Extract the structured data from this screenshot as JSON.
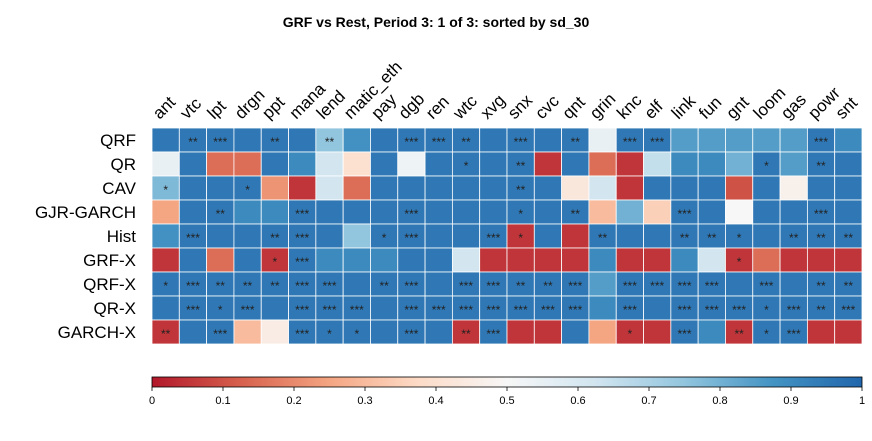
{
  "chart_data": {
    "type": "heatmap",
    "title": "GRF vs Rest,  Period 3: 1 of 3: sorted by sd_30",
    "columns": [
      "ant",
      "vtc",
      "lpt",
      "drgn",
      "ppt",
      "mana",
      "lend",
      "matic_eth",
      "pay",
      "dgb",
      "ren",
      "wtc",
      "xvg",
      "snx",
      "cvc",
      "qnt",
      "grin",
      "knc",
      "elf",
      "link",
      "fun",
      "gnt",
      "loom",
      "gas",
      "powr",
      "snt"
    ],
    "rows": [
      "QRF",
      "QR",
      "CAV",
      "GJR-GARCH",
      "Hist",
      "GRF-X",
      "QRF-X",
      "QR-X",
      "GARCH-X"
    ],
    "values": [
      [
        0.95,
        0.95,
        0.95,
        0.95,
        0.95,
        0.95,
        0.75,
        0.88,
        0.95,
        0.95,
        0.95,
        0.95,
        0.95,
        0.95,
        0.95,
        0.95,
        0.55,
        0.95,
        0.95,
        0.85,
        0.85,
        0.85,
        0.85,
        0.85,
        0.95,
        0.9
      ],
      [
        0.55,
        0.95,
        0.15,
        0.15,
        0.95,
        0.9,
        0.62,
        0.4,
        0.95,
        0.53,
        0.95,
        0.95,
        0.95,
        0.95,
        0.05,
        0.95,
        0.15,
        0.05,
        0.65,
        0.9,
        0.9,
        0.8,
        0.95,
        0.85,
        0.95,
        0.95
      ],
      [
        0.78,
        0.95,
        0.95,
        0.95,
        0.22,
        0.05,
        0.62,
        0.15,
        0.95,
        0.95,
        0.95,
        0.95,
        0.95,
        0.95,
        0.95,
        0.43,
        0.62,
        0.05,
        0.95,
        0.95,
        0.95,
        0.1,
        0.95,
        0.47,
        0.95,
        0.95
      ],
      [
        0.25,
        0.95,
        0.95,
        0.9,
        0.9,
        0.95,
        0.95,
        0.95,
        0.95,
        0.95,
        0.95,
        0.95,
        0.95,
        0.95,
        0.95,
        0.95,
        0.3,
        0.8,
        0.35,
        0.95,
        0.95,
        0.5,
        0.95,
        0.95,
        0.95,
        0.95
      ],
      [
        0.88,
        0.95,
        0.95,
        0.95,
        0.95,
        0.95,
        0.95,
        0.75,
        0.95,
        0.95,
        0.95,
        0.95,
        0.95,
        0.05,
        0.95,
        0.05,
        0.95,
        0.95,
        0.95,
        0.95,
        0.95,
        0.95,
        0.95,
        0.95,
        0.95,
        0.95
      ],
      [
        0.05,
        0.95,
        0.15,
        0.95,
        0.05,
        0.95,
        0.9,
        0.9,
        0.9,
        0.95,
        0.95,
        0.62,
        0.05,
        0.05,
        0.05,
        0.05,
        0.9,
        0.05,
        0.05,
        0.9,
        0.62,
        0.05,
        0.15,
        0.05,
        0.05,
        0.05
      ],
      [
        0.95,
        0.95,
        0.95,
        0.95,
        0.95,
        0.95,
        0.95,
        0.95,
        0.95,
        0.95,
        0.95,
        0.95,
        0.95,
        0.95,
        0.95,
        0.95,
        0.85,
        0.95,
        0.95,
        0.95,
        0.95,
        0.95,
        0.95,
        0.95,
        0.95,
        0.95
      ],
      [
        0.95,
        0.95,
        0.95,
        0.95,
        0.95,
        0.95,
        0.95,
        0.95,
        0.95,
        0.95,
        0.95,
        0.95,
        0.95,
        0.95,
        0.95,
        0.95,
        0.9,
        0.95,
        0.95,
        0.95,
        0.95,
        0.95,
        0.95,
        0.95,
        0.95,
        0.95
      ],
      [
        0.05,
        0.95,
        0.95,
        0.3,
        0.45,
        0.95,
        0.95,
        0.95,
        0.95,
        0.95,
        0.95,
        0.05,
        0.95,
        0.05,
        0.05,
        0.95,
        0.25,
        0.05,
        0.05,
        0.95,
        0.9,
        0.05,
        0.95,
        0.95,
        0.05,
        0.05
      ]
    ],
    "stars": [
      [
        "",
        "**",
        "***",
        "",
        "**",
        "",
        "**",
        "",
        "",
        "***",
        "***",
        "**",
        "",
        "***",
        "",
        "**",
        "",
        "***",
        "***",
        "",
        "",
        "",
        "",
        "",
        "***",
        ""
      ],
      [
        "",
        "",
        "",
        "",
        "",
        "",
        "",
        "",
        "",
        "",
        "",
        "*",
        "",
        "**",
        "",
        "",
        "",
        "",
        "",
        "",
        "",
        "",
        "*",
        "",
        "**",
        ""
      ],
      [
        "*",
        "",
        "",
        "*",
        "",
        "",
        "",
        "",
        "",
        "",
        "",
        "",
        "",
        "**",
        "",
        "",
        "",
        "",
        "",
        "",
        "",
        "",
        "",
        "",
        "",
        ""
      ],
      [
        "",
        "",
        "**",
        "",
        "",
        "***",
        "",
        "",
        "",
        "***",
        "",
        "",
        "",
        "*",
        "",
        "**",
        "",
        "",
        "",
        "***",
        "",
        "",
        "",
        "",
        "***",
        ""
      ],
      [
        "",
        "***",
        "",
        "",
        "**",
        "***",
        "",
        "",
        "*",
        "***",
        "",
        "",
        "***",
        "*",
        "",
        "",
        "**",
        "",
        "",
        "**",
        "**",
        "*",
        "",
        "**",
        "**",
        "**"
      ],
      [
        "",
        "",
        "",
        "",
        "*",
        "***",
        "",
        "",
        "",
        "",
        "",
        "",
        "",
        "",
        "",
        "",
        "",
        "",
        "",
        "",
        "",
        "*",
        "",
        "",
        "",
        ""
      ],
      [
        "*",
        "***",
        "**",
        "**",
        "**",
        "***",
        "***",
        "",
        "**",
        "***",
        "",
        "***",
        "***",
        "**",
        "**",
        "***",
        "",
        "***",
        "***",
        "***",
        "***",
        "",
        "***",
        "",
        "**",
        "**"
      ],
      [
        "",
        "***",
        "*",
        "***",
        "",
        "***",
        "***",
        "***",
        "",
        "***",
        "***",
        "***",
        "***",
        "***",
        "***",
        "***",
        "",
        "***",
        "",
        "***",
        "***",
        "***",
        "*",
        "***",
        "**",
        "***"
      ],
      [
        "**",
        "",
        "***",
        "",
        "",
        "***",
        "*",
        "*",
        "",
        "***",
        "",
        "**",
        "***",
        "",
        "",
        "",
        "",
        "*",
        "",
        "***",
        "",
        "**",
        "*",
        "***",
        "",
        ""
      ]
    ],
    "colorbar": {
      "range": [
        0,
        1
      ],
      "ticks": [
        "0",
        "0.1",
        "0.2",
        "0.3",
        "0.4",
        "0.5",
        "0.6",
        "0.7",
        "0.8",
        "0.9",
        "1"
      ],
      "colormap": "RdBu",
      "colors": [
        "#b2182b",
        "#d6604d",
        "#f4a582",
        "#fddbc7",
        "#f7f7f7",
        "#d1e5f0",
        "#92c5de",
        "#4393c3",
        "#2166ac"
      ]
    }
  }
}
